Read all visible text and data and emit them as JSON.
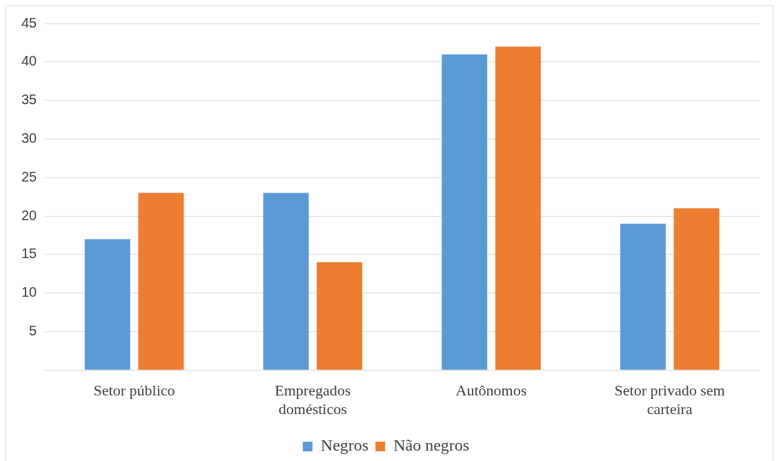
{
  "chart_data": {
    "type": "bar",
    "categories": [
      "Setor público",
      "Empregados domésticos",
      "Autônomos",
      "Setor privado sem carteira"
    ],
    "series": [
      {
        "name": "Negros",
        "color": "#5b9bd5",
        "values": [
          17,
          23,
          41,
          19
        ]
      },
      {
        "name": "Não negros",
        "color": "#ed7d31",
        "values": [
          23,
          14,
          42,
          21
        ]
      }
    ],
    "ylim": [
      0,
      45
    ],
    "yticks": [
      {
        "value": 0,
        "label": null
      },
      5,
      10,
      15,
      20,
      25,
      30,
      35,
      40,
      45
    ],
    "grid": "y",
    "legend": "bottom"
  }
}
